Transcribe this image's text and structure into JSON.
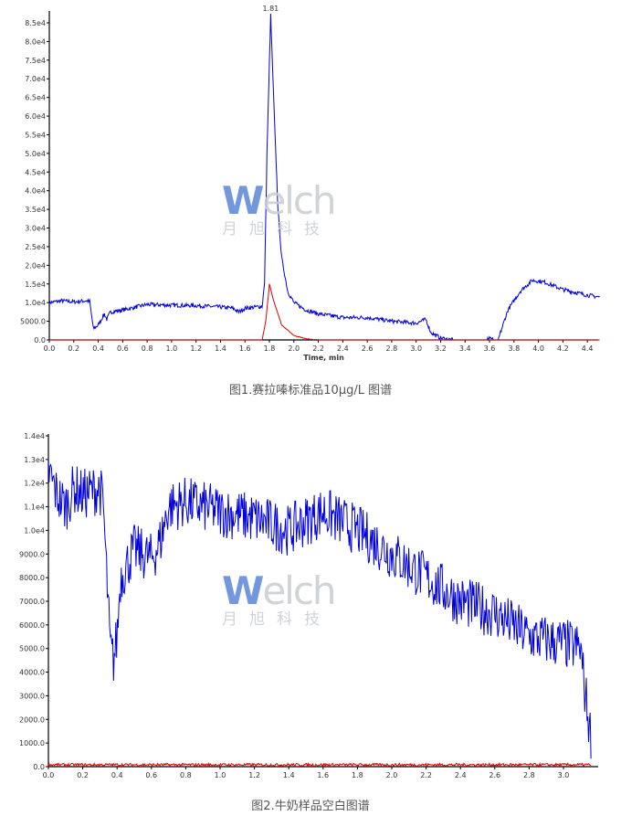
{
  "logo": {
    "text": "Welch",
    "subtext": "月旭科技"
  },
  "chart_data": [
    {
      "type": "line",
      "caption": "图1.赛拉嗪标准品10μg/L 图谱",
      "xlabel": "Time, min",
      "ylabel": "",
      "xlim": [
        0,
        4.5
      ],
      "ylim": [
        0,
        87000
      ],
      "x_ticks": [
        "0.0",
        "0.2",
        "0.4",
        "0.6",
        "0.8",
        "1.0",
        "1.2",
        "1.4",
        "1.6",
        "1.8",
        "2.0",
        "2.2",
        "2.4",
        "2.6",
        "2.8",
        "3.0",
        "3.2",
        "3.4",
        "3.6",
        "3.8",
        "4.0",
        "4.2",
        "4.4"
      ],
      "y_ticks": [
        "0.0",
        "5000.0",
        "1.0e4",
        "1.5e4",
        "2.0e4",
        "2.5e4",
        "3.0e4",
        "3.5e4",
        "4.0e4",
        "4.5e4",
        "5.0e4",
        "5.5e4",
        "6.0e4",
        "6.5e4",
        "7.0e4",
        "7.5e4",
        "8.0e4",
        "8.5e4"
      ],
      "annotations": [
        {
          "text": "1.81",
          "x": 1.81,
          "y": 87000
        }
      ],
      "grid": false,
      "series": [
        {
          "color": "#0000dd",
          "x": [
            0,
            0.1,
            0.2,
            0.3,
            0.33,
            0.36,
            0.4,
            0.45,
            0.47,
            0.5,
            0.6,
            0.8,
            1.0,
            1.2,
            1.4,
            1.5,
            1.55,
            1.6,
            1.74,
            1.76,
            1.78,
            1.81,
            1.84,
            1.87,
            1.9,
            1.95,
            2.0,
            2.1,
            2.2,
            2.4,
            2.6,
            2.8,
            3.0,
            3.08,
            3.12,
            3.2,
            3.3,
            3.58,
            3.6,
            3.63,
            3.67,
            3.75,
            3.85,
            3.95,
            4.05,
            4.2,
            4.4,
            4.5
          ],
          "y": [
            10000,
            10500,
            10200,
            10500,
            10300,
            3000,
            4000,
            7000,
            5500,
            7500,
            8000,
            9500,
            9300,
            9200,
            8800,
            8500,
            7500,
            8500,
            9000,
            15000,
            50000,
            87000,
            60000,
            35000,
            22000,
            13000,
            10000,
            8000,
            7000,
            6000,
            6000,
            5000,
            4500,
            5500,
            2000,
            500,
            0,
            0,
            800,
            0,
            0,
            8000,
            13000,
            16000,
            15500,
            13500,
            12000,
            11500
          ]
        },
        {
          "color": "#dd0000",
          "x": [
            0,
            1.74,
            1.77,
            1.8,
            1.83,
            1.9,
            2.0,
            2.1,
            2.2,
            4.5
          ],
          "y": [
            0,
            0,
            5000,
            15000,
            11000,
            4000,
            1200,
            300,
            0,
            0
          ]
        }
      ]
    },
    {
      "type": "line",
      "caption": "图2.牛奶样品空白图谱",
      "xlabel": "",
      "ylabel": "",
      "xlim": [
        0,
        3.16
      ],
      "ylim": [
        0,
        14000
      ],
      "x_ticks": [
        "0.0",
        "0.2",
        "0.4",
        "0.6",
        "0.8",
        "1.0",
        "1.2",
        "1.4",
        "1.6",
        "1.8",
        "2.0",
        "2.2",
        "2.4",
        "2.6",
        "2.8",
        "3.0"
      ],
      "y_ticks": [
        "0.0",
        "1000.0",
        "2000.0",
        "3000.0",
        "4000.0",
        "5000.0",
        "6000.0",
        "7000.0",
        "8000.0",
        "9000.0",
        "1.0e4",
        "1.1e4",
        "1.2e4",
        "1.3e4",
        "1.4e4"
      ],
      "grid": false,
      "series": [
        {
          "color": "#0000dd",
          "x": [
            0,
            0.05,
            0.1,
            0.15,
            0.2,
            0.3,
            0.32,
            0.34,
            0.36,
            0.38,
            0.4,
            0.42,
            0.5,
            0.6,
            0.65,
            0.7,
            0.8,
            1.0,
            1.2,
            1.4,
            1.6,
            1.8,
            2.0,
            2.2,
            2.4,
            2.6,
            2.8,
            3.0,
            3.1,
            3.12,
            3.16
          ],
          "y": [
            12500,
            11500,
            11000,
            11800,
            11500,
            11800,
            11000,
            8000,
            5000,
            4500,
            5500,
            8000,
            9200,
            8800,
            9500,
            11000,
            11200,
            10800,
            10500,
            10000,
            10800,
            10000,
            9000,
            8000,
            7000,
            6500,
            5500,
            5200,
            5000,
            3500,
            1200
          ]
        },
        {
          "color": "#dd0000",
          "x": [
            0,
            3.16
          ],
          "y": [
            80,
            80
          ]
        }
      ]
    }
  ]
}
